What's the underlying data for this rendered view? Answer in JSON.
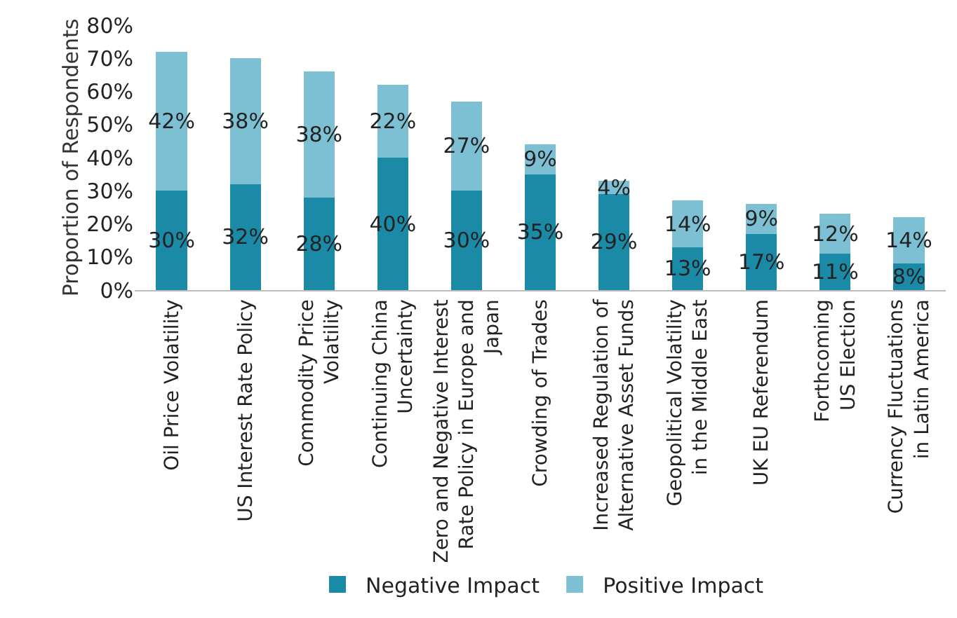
{
  "chart_data": {
    "type": "bar",
    "stacked": true,
    "ylabel": "Proportion of Respondents",
    "categories": [
      "Oil Price Volatility",
      "US Interest Rate Policy",
      "Commodity Price\nVolatility",
      "Continuing China\nUncertainty",
      "Zero and Negative Interest\nRate Policy in Europe and\nJapan",
      "Crowding of Trades",
      "Increased Regulation of\nAlternative Asset Funds",
      "Geopolitical Volatility\nin the Middle East",
      "UK EU Referendum",
      "Forthcoming\nUS Election",
      "Currency Fluctuations\nin Latin America"
    ],
    "series": [
      {
        "name": "Negative Impact",
        "color": "#1a8aa6",
        "values": [
          30,
          32,
          28,
          40,
          30,
          35,
          29,
          13,
          17,
          11,
          8
        ],
        "value_labels": [
          "30%",
          "32%",
          "28%",
          "40%",
          "30%",
          "35%",
          "29%",
          "13%",
          "17%",
          "11%",
          "8%"
        ]
      },
      {
        "name": "Positive Impact",
        "color": "#7ec0d3",
        "values": [
          42,
          38,
          38,
          22,
          27,
          9,
          4,
          14,
          9,
          12,
          14
        ],
        "value_labels": [
          "42%",
          "38%",
          "38%",
          "22%",
          "27%",
          "9%",
          "4%",
          "14%",
          "9%",
          "12%",
          "14%"
        ]
      }
    ],
    "ylim": [
      0,
      80
    ],
    "yticks": [
      {
        "value": 0,
        "label": "0%"
      },
      {
        "value": 10,
        "label": "10%"
      },
      {
        "value": 20,
        "label": "20%"
      },
      {
        "value": 30,
        "label": "30%"
      },
      {
        "value": 40,
        "label": "40%"
      },
      {
        "value": 50,
        "label": "50%"
      },
      {
        "value": 60,
        "label": "60%"
      },
      {
        "value": 70,
        "label": "70%"
      },
      {
        "value": 80,
        "label": "80%"
      }
    ],
    "grid": false,
    "legend": "bottom"
  }
}
